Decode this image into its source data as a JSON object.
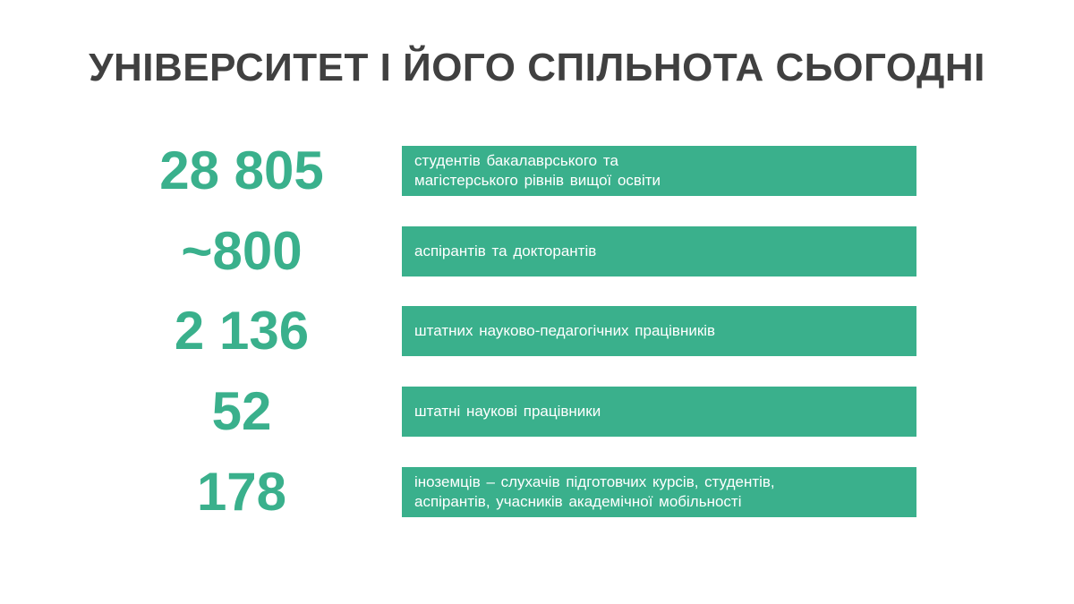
{
  "title": "УНІВЕРСИТЕТ І ЙОГО СПІЛЬНОТА СЬОГОДНІ",
  "accent_color": "#3ab08c",
  "title_color": "#404040",
  "stats": [
    {
      "number": "28 805",
      "label_lines": [
        "студентів бакалаврського та",
        "магістерського рівнів вищої освіти"
      ]
    },
    {
      "number": "~800",
      "label_lines": [
        "аспірантів та докторантів"
      ]
    },
    {
      "number": "2 136",
      "label_lines": [
        "штатних науково-педагогічних працівників"
      ]
    },
    {
      "number": "52",
      "label_lines": [
        "штатні наукові працівники"
      ]
    },
    {
      "number": "178",
      "label_lines": [
        "іноземців – слухачів підготовчих курсів, студентів,",
        "аспірантів, учасників академічної мобільності"
      ]
    }
  ]
}
